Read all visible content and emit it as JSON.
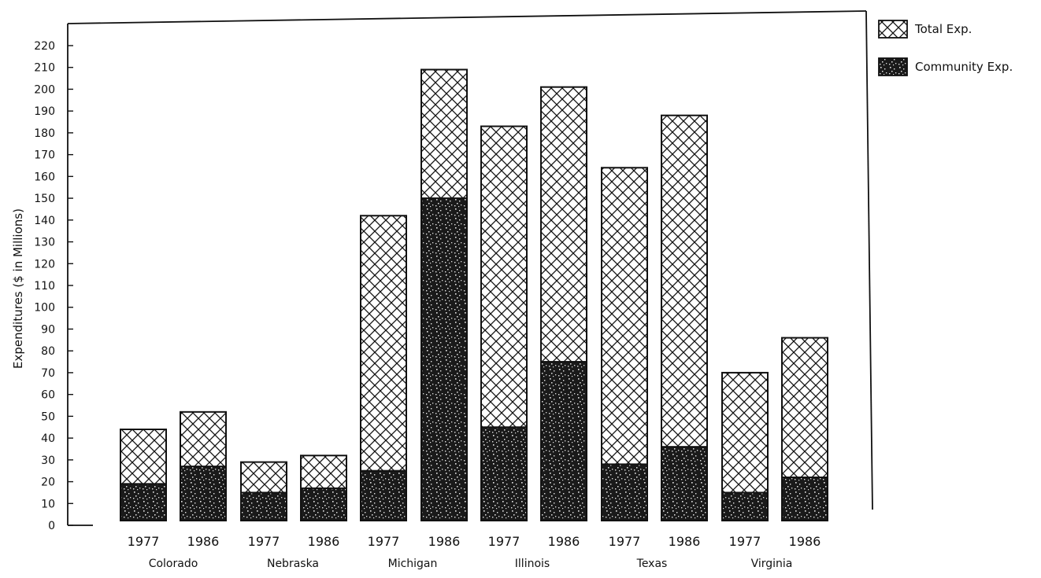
{
  "chart_data": {
    "type": "bar",
    "ylabel": "Expenditures ($ in Millions)",
    "ylim": [
      0,
      220
    ],
    "yticks": [
      0,
      10,
      20,
      30,
      40,
      50,
      60,
      70,
      80,
      90,
      100,
      110,
      120,
      130,
      140,
      150,
      160,
      170,
      180,
      190,
      200,
      210,
      220
    ],
    "grid": false,
    "legend_position": "top-right",
    "groups": [
      {
        "name": "Colorado",
        "bars": [
          {
            "year": "1977",
            "total": 44,
            "community": 19
          },
          {
            "year": "1986",
            "total": 52,
            "community": 27
          }
        ]
      },
      {
        "name": "Nebraska",
        "bars": [
          {
            "year": "1977",
            "total": 29,
            "community": 15
          },
          {
            "year": "1986",
            "total": 32,
            "community": 17
          }
        ]
      },
      {
        "name": "Michigan",
        "bars": [
          {
            "year": "1977",
            "total": 142,
            "community": 25
          },
          {
            "year": "1986",
            "total": 209,
            "community": 150
          }
        ]
      },
      {
        "name": "Illinois",
        "bars": [
          {
            "year": "1977",
            "total": 183,
            "community": 45
          },
          {
            "year": "1986",
            "total": 201,
            "community": 75
          }
        ]
      },
      {
        "name": "Texas",
        "bars": [
          {
            "year": "1977",
            "total": 164,
            "community": 28
          },
          {
            "year": "1986",
            "total": 188,
            "community": 36
          }
        ]
      },
      {
        "name": "Virginia",
        "bars": [
          {
            "year": "1977",
            "total": 70,
            "community": 15
          },
          {
            "year": "1986",
            "total": 86,
            "community": 22
          }
        ]
      }
    ],
    "series": [
      {
        "name": "Total Exp.",
        "pattern": "crosshatch"
      },
      {
        "name": "Community Exp.",
        "pattern": "speckled-dark"
      }
    ]
  }
}
